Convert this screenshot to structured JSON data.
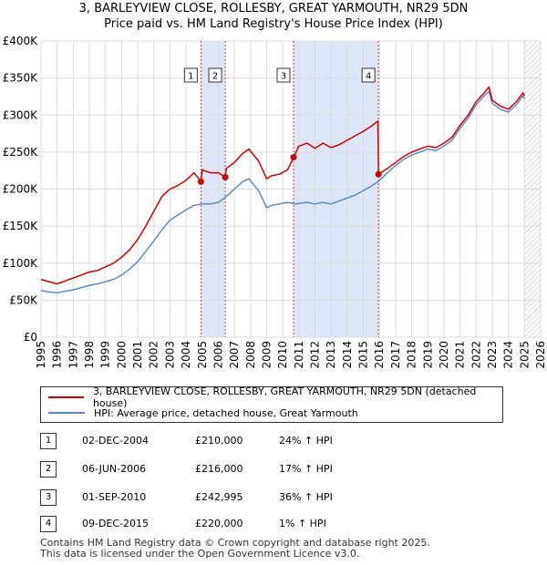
{
  "header": {
    "title": "3, BARLEYVIEW CLOSE, ROLLESBY, GREAT YARMOUTH, NR29 5DN",
    "subtitle": "Price paid vs. HM Land Registry's House Price Index (HPI)"
  },
  "legend": {
    "property_label": "3, BARLEYVIEW CLOSE, ROLLESBY, GREAT YARMOUTH, NR29 5DN (detached house)",
    "hpi_label": "HPI: Average price, detached house, Great Yarmouth"
  },
  "transactions": [
    {
      "num": "1",
      "date": "02-DEC-2004",
      "price": "£210,000",
      "hpi": "24% ↑ HPI"
    },
    {
      "num": "2",
      "date": "06-JUN-2006",
      "price": "£216,000",
      "hpi": "17% ↑ HPI"
    },
    {
      "num": "3",
      "date": "01-SEP-2010",
      "price": "£242,995",
      "hpi": "36% ↑ HPI"
    },
    {
      "num": "4",
      "date": "09-DEC-2015",
      "price": "£220,000",
      "hpi": "1% ↑ HPI"
    }
  ],
  "footer": {
    "line1": "Contains HM Land Registry data © Crown copyright and database right 2025.",
    "line2": "This data is licensed under the Open Government Licence v3.0."
  },
  "chart_data": {
    "type": "line",
    "title": "3, BARLEYVIEW CLOSE, ROLLESBY, GREAT YARMOUTH, NR29 5DN",
    "subtitle": "Price paid vs. HM Land Registry's House Price Index (HPI)",
    "xlabel": "",
    "ylabel": "",
    "xlim": [
      1995,
      2026
    ],
    "ylim": [
      0,
      400000
    ],
    "grid": true,
    "y_ticks": [
      0,
      50000,
      100000,
      150000,
      200000,
      250000,
      300000,
      350000,
      400000
    ],
    "y_tick_labels": [
      "£0",
      "£50K",
      "£100K",
      "£150K",
      "£200K",
      "£250K",
      "£300K",
      "£350K",
      "£400K"
    ],
    "x_ticks": [
      1995,
      1996,
      1997,
      1998,
      1999,
      2000,
      2001,
      2002,
      2003,
      2004,
      2005,
      2006,
      2007,
      2008,
      2009,
      2010,
      2011,
      2012,
      2013,
      2014,
      2015,
      2016,
      2017,
      2018,
      2019,
      2020,
      2021,
      2022,
      2023,
      2024,
      2025,
      2026
    ],
    "x_tick_labels": [
      "1995",
      "1996",
      "1997",
      "1998",
      "1999",
      "2000",
      "2001",
      "2002",
      "2003",
      "2004",
      "2005",
      "2006",
      "2007",
      "2008",
      "2009",
      "2010",
      "2011",
      "2012",
      "2013",
      "2014",
      "2015",
      "2016",
      "2017",
      "2018",
      "2019",
      "2020",
      "2021",
      "2022",
      "2023",
      "2024",
      "2025",
      "2026"
    ],
    "shaded_periods": [
      [
        2004.92,
        2006.43
      ],
      [
        2010.67,
        2015.94
      ]
    ],
    "future_hatch_start": 2025.0,
    "sales": [
      {
        "label": "1",
        "x": 2004.92,
        "y": 210000
      },
      {
        "label": "2",
        "x": 2006.43,
        "y": 216000
      },
      {
        "label": "3",
        "x": 2010.67,
        "y": 242995
      },
      {
        "label": "4",
        "x": 2015.94,
        "y": 220000
      }
    ],
    "series": [
      {
        "name": "3, BARLEYVIEW CLOSE, ROLLESBY, GREAT YARMOUTH, NR29 5DN (detached house)",
        "color": "#cc0000",
        "x": [
          1995,
          1995.5,
          1996,
          1996.5,
          1997,
          1997.5,
          1998,
          1998.5,
          1999,
          1999.5,
          2000,
          2000.5,
          2001,
          2001.5,
          2002,
          2002.5,
          2003,
          2003.5,
          2004,
          2004.5,
          2004.92,
          2005,
          2005.5,
          2006,
          2006.43,
          2006.5,
          2007,
          2007.5,
          2007.9,
          2008.5,
          2009,
          2009.3,
          2009.8,
          2010.3,
          2010.67,
          2011,
          2011.5,
          2012,
          2012.5,
          2013,
          2013.5,
          2014,
          2014.5,
          2015,
          2015.5,
          2015.9,
          2015.94,
          2016.5,
          2017,
          2017.5,
          2018,
          2018.5,
          2019,
          2019.5,
          2020,
          2020.5,
          2021,
          2021.5,
          2022,
          2022.5,
          2022.8,
          2023,
          2023.5,
          2024,
          2024.5,
          2024.9,
          2025.0
        ],
        "y": [
          78000,
          75000,
          72000,
          76000,
          80000,
          84000,
          88000,
          90000,
          95000,
          100000,
          108000,
          118000,
          132000,
          150000,
          170000,
          190000,
          200000,
          205000,
          212000,
          222000,
          210000,
          226000,
          222000,
          222000,
          216000,
          228000,
          236000,
          248000,
          254000,
          238000,
          214000,
          218000,
          220000,
          226000,
          242995,
          258000,
          262000,
          255000,
          262000,
          256000,
          260000,
          266000,
          272000,
          278000,
          285000,
          292000,
          220000,
          228000,
          236000,
          244000,
          250000,
          254000,
          258000,
          256000,
          262000,
          270000,
          286000,
          300000,
          318000,
          330000,
          338000,
          320000,
          312000,
          308000,
          318000,
          330000,
          326000
        ]
      },
      {
        "name": "HPI: Average price, detached house, Great Yarmouth",
        "color": "#5b8cc9",
        "x": [
          1995,
          1995.5,
          1996,
          1996.5,
          1997,
          1997.5,
          1998,
          1998.5,
          1999,
          1999.5,
          2000,
          2000.5,
          2001,
          2001.5,
          2002,
          2002.5,
          2003,
          2003.5,
          2004,
          2004.5,
          2005,
          2005.5,
          2006,
          2006.5,
          2007,
          2007.5,
          2007.9,
          2008.5,
          2009,
          2009.3,
          2009.8,
          2010.3,
          2010.8,
          2011.5,
          2012,
          2012.5,
          2013,
          2013.5,
          2014,
          2014.5,
          2015,
          2015.5,
          2015.9,
          2016.5,
          2017,
          2017.5,
          2018,
          2018.5,
          2019,
          2019.5,
          2020,
          2020.5,
          2021,
          2021.5,
          2022,
          2022.5,
          2022.8,
          2023,
          2023.5,
          2024,
          2024.5,
          2024.9,
          2025.0
        ],
        "y": [
          63000,
          61000,
          60000,
          62000,
          64000,
          67000,
          70000,
          72000,
          75000,
          78000,
          84000,
          92000,
          102000,
          116000,
          130000,
          145000,
          158000,
          165000,
          172000,
          178000,
          180000,
          180000,
          182000,
          190000,
          200000,
          210000,
          214000,
          198000,
          175000,
          178000,
          180000,
          182000,
          180000,
          182000,
          180000,
          182000,
          180000,
          184000,
          188000,
          192000,
          198000,
          204000,
          210000,
          222000,
          232000,
          240000,
          246000,
          250000,
          254000,
          252000,
          258000,
          266000,
          282000,
          296000,
          314000,
          326000,
          332000,
          316000,
          308000,
          304000,
          314000,
          326000,
          322000
        ]
      }
    ]
  }
}
